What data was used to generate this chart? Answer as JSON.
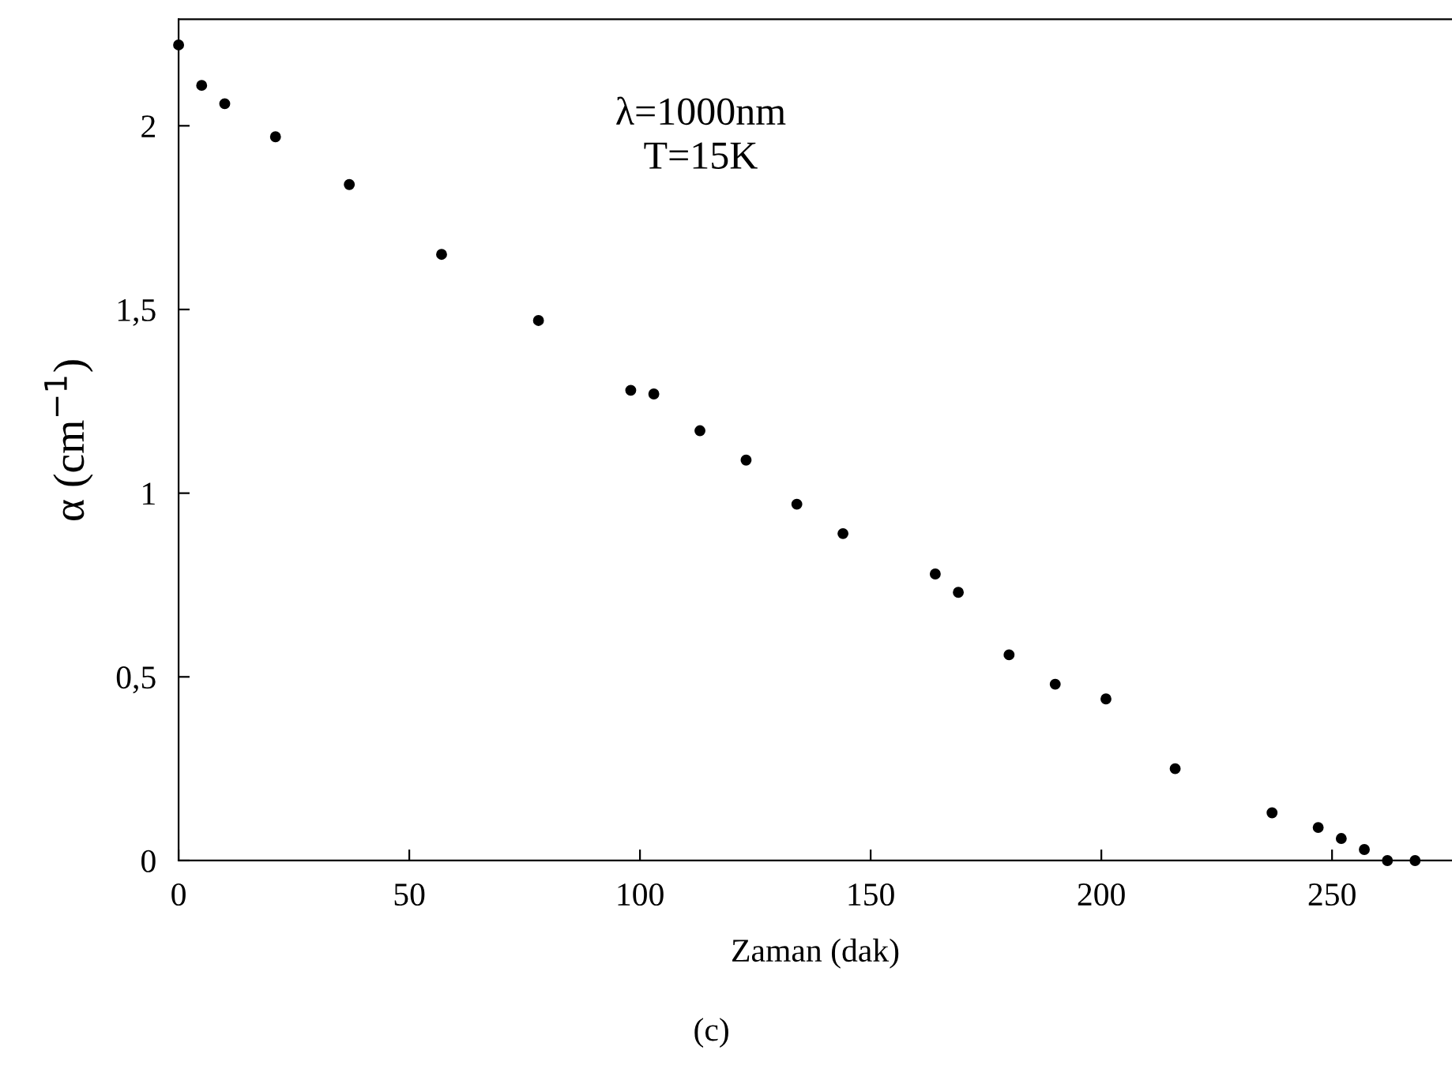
{
  "chart_data": {
    "type": "scatter",
    "xlabel": "Zaman (dak)",
    "ylabel": "α (cm$^{−1}$)",
    "annotations": [
      "λ=1000nm\nT=15K",
      "(c)"
    ],
    "x": [
      0,
      5,
      10,
      21,
      37,
      57,
      78,
      98,
      103,
      113,
      123,
      134,
      144,
      164,
      169,
      180,
      190,
      201,
      216,
      237,
      247,
      252,
      257,
      262,
      268
    ],
    "series": [
      {
        "color": "#000000",
        "values": [
          2.22,
          2.11,
          2.06,
          1.97,
          1.84,
          1.65,
          1.47,
          1.28,
          1.27,
          1.17,
          1.09,
          0.97,
          0.89,
          0.78,
          0.73,
          0.56,
          0.48,
          0.44,
          0.25,
          0.13,
          0.09,
          0.06,
          0.03,
          0.0,
          0.0
        ]
      }
    ],
    "xlim": [
      0,
      276
    ],
    "ylim": [
      0,
      2.29
    ],
    "xticks": [
      0,
      50,
      100,
      150,
      200,
      250
    ],
    "yticks": [
      0,
      {
        "value": 0.5,
        "label": "0,5"
      },
      1,
      {
        "value": 1.5,
        "label": "1,5"
      },
      2
    ],
    "marker": "circle",
    "grid": false,
    "legend": false
  }
}
